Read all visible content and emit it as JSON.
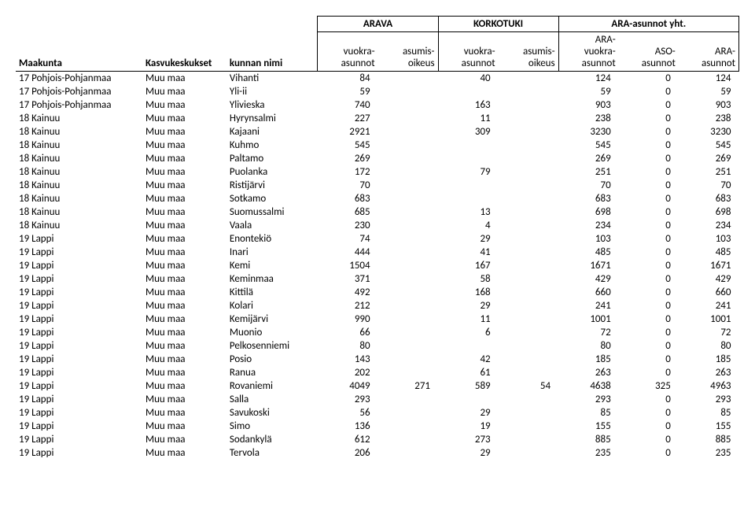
{
  "headers": {
    "group_arava": "ARAVA",
    "group_korkotuki": "KORKOTUKI",
    "group_ara_yht": "ARA-asunnot yht.",
    "maakunta": "Maakunta",
    "kasvukeskukset": "Kasvukeskukset",
    "kunnan_nimi": "kunnan nimi",
    "vuokra_asunnot": "vuokra-\nasunnot",
    "asumis_oikeus": "asumis-\noikeus",
    "ara_vuokra_asunnot": "ARA-\nvuokra-\nasunnot",
    "aso_asunnot": "ASO-\nasunnot",
    "ara_asunnot": "ARA-\nasunnot"
  },
  "rows": [
    {
      "maakunta": "17 Pohjois-Pohjanmaa",
      "kasvu": "Muu maa",
      "kunta": "Vihanti",
      "c1": 84,
      "c2": "",
      "c3": 40,
      "c4": "",
      "c5": 124,
      "c6": 0,
      "c7": 124
    },
    {
      "maakunta": "17 Pohjois-Pohjanmaa",
      "kasvu": "Muu maa",
      "kunta": "Yli-ii",
      "c1": 59,
      "c2": "",
      "c3": "",
      "c4": "",
      "c5": 59,
      "c6": 0,
      "c7": 59
    },
    {
      "maakunta": "17 Pohjois-Pohjanmaa",
      "kasvu": "Muu maa",
      "kunta": "Ylivieska",
      "c1": 740,
      "c2": "",
      "c3": 163,
      "c4": "",
      "c5": 903,
      "c6": 0,
      "c7": 903
    },
    {
      "maakunta": "18 Kainuu",
      "kasvu": "Muu maa",
      "kunta": "Hyrynsalmi",
      "c1": 227,
      "c2": "",
      "c3": 11,
      "c4": "",
      "c5": 238,
      "c6": 0,
      "c7": 238
    },
    {
      "maakunta": "18 Kainuu",
      "kasvu": "Muu maa",
      "kunta": "Kajaani",
      "c1": 2921,
      "c2": "",
      "c3": 309,
      "c4": "",
      "c5": 3230,
      "c6": 0,
      "c7": 3230
    },
    {
      "maakunta": "18 Kainuu",
      "kasvu": "Muu maa",
      "kunta": "Kuhmo",
      "c1": 545,
      "c2": "",
      "c3": "",
      "c4": "",
      "c5": 545,
      "c6": 0,
      "c7": 545
    },
    {
      "maakunta": "18 Kainuu",
      "kasvu": "Muu maa",
      "kunta": "Paltamo",
      "c1": 269,
      "c2": "",
      "c3": "",
      "c4": "",
      "c5": 269,
      "c6": 0,
      "c7": 269
    },
    {
      "maakunta": "18 Kainuu",
      "kasvu": "Muu maa",
      "kunta": "Puolanka",
      "c1": 172,
      "c2": "",
      "c3": 79,
      "c4": "",
      "c5": 251,
      "c6": 0,
      "c7": 251
    },
    {
      "maakunta": "18 Kainuu",
      "kasvu": "Muu maa",
      "kunta": "Ristijärvi",
      "c1": 70,
      "c2": "",
      "c3": "",
      "c4": "",
      "c5": 70,
      "c6": 0,
      "c7": 70
    },
    {
      "maakunta": "18 Kainuu",
      "kasvu": "Muu maa",
      "kunta": "Sotkamo",
      "c1": 683,
      "c2": "",
      "c3": "",
      "c4": "",
      "c5": 683,
      "c6": 0,
      "c7": 683
    },
    {
      "maakunta": "18 Kainuu",
      "kasvu": "Muu maa",
      "kunta": "Suomussalmi",
      "c1": 685,
      "c2": "",
      "c3": 13,
      "c4": "",
      "c5": 698,
      "c6": 0,
      "c7": 698
    },
    {
      "maakunta": "18 Kainuu",
      "kasvu": "Muu maa",
      "kunta": "Vaala",
      "c1": 230,
      "c2": "",
      "c3": 4,
      "c4": "",
      "c5": 234,
      "c6": 0,
      "c7": 234
    },
    {
      "maakunta": "19 Lappi",
      "kasvu": "Muu maa",
      "kunta": "Enontekiö",
      "c1": 74,
      "c2": "",
      "c3": 29,
      "c4": "",
      "c5": 103,
      "c6": 0,
      "c7": 103
    },
    {
      "maakunta": "19 Lappi",
      "kasvu": "Muu maa",
      "kunta": "Inari",
      "c1": 444,
      "c2": "",
      "c3": 41,
      "c4": "",
      "c5": 485,
      "c6": 0,
      "c7": 485
    },
    {
      "maakunta": "19 Lappi",
      "kasvu": "Muu maa",
      "kunta": "Kemi",
      "c1": 1504,
      "c2": "",
      "c3": 167,
      "c4": "",
      "c5": 1671,
      "c6": 0,
      "c7": 1671
    },
    {
      "maakunta": "19 Lappi",
      "kasvu": "Muu maa",
      "kunta": "Keminmaa",
      "c1": 371,
      "c2": "",
      "c3": 58,
      "c4": "",
      "c5": 429,
      "c6": 0,
      "c7": 429
    },
    {
      "maakunta": "19 Lappi",
      "kasvu": "Muu maa",
      "kunta": "Kittilä",
      "c1": 492,
      "c2": "",
      "c3": 168,
      "c4": "",
      "c5": 660,
      "c6": 0,
      "c7": 660
    },
    {
      "maakunta": "19 Lappi",
      "kasvu": "Muu maa",
      "kunta": "Kolari",
      "c1": 212,
      "c2": "",
      "c3": 29,
      "c4": "",
      "c5": 241,
      "c6": 0,
      "c7": 241
    },
    {
      "maakunta": "19 Lappi",
      "kasvu": "Muu maa",
      "kunta": "Kemijärvi",
      "c1": 990,
      "c2": "",
      "c3": 11,
      "c4": "",
      "c5": 1001,
      "c6": 0,
      "c7": 1001
    },
    {
      "maakunta": "19 Lappi",
      "kasvu": "Muu maa",
      "kunta": "Muonio",
      "c1": 66,
      "c2": "",
      "c3": 6,
      "c4": "",
      "c5": 72,
      "c6": 0,
      "c7": 72
    },
    {
      "maakunta": "19 Lappi",
      "kasvu": "Muu maa",
      "kunta": "Pelkosenniemi",
      "c1": 80,
      "c2": "",
      "c3": "",
      "c4": "",
      "c5": 80,
      "c6": 0,
      "c7": 80
    },
    {
      "maakunta": "19 Lappi",
      "kasvu": "Muu maa",
      "kunta": "Posio",
      "c1": 143,
      "c2": "",
      "c3": 42,
      "c4": "",
      "c5": 185,
      "c6": 0,
      "c7": 185
    },
    {
      "maakunta": "19 Lappi",
      "kasvu": "Muu maa",
      "kunta": "Ranua",
      "c1": 202,
      "c2": "",
      "c3": 61,
      "c4": "",
      "c5": 263,
      "c6": 0,
      "c7": 263
    },
    {
      "maakunta": "19 Lappi",
      "kasvu": "Muu maa",
      "kunta": "Rovaniemi",
      "c1": 4049,
      "c2": 271,
      "c3": 589,
      "c4": 54,
      "c5": 4638,
      "c6": 325,
      "c7": 4963
    },
    {
      "maakunta": "19 Lappi",
      "kasvu": "Muu maa",
      "kunta": "Salla",
      "c1": 293,
      "c2": "",
      "c3": "",
      "c4": "",
      "c5": 293,
      "c6": 0,
      "c7": 293
    },
    {
      "maakunta": "19 Lappi",
      "kasvu": "Muu maa",
      "kunta": "Savukoski",
      "c1": 56,
      "c2": "",
      "c3": 29,
      "c4": "",
      "c5": 85,
      "c6": 0,
      "c7": 85
    },
    {
      "maakunta": "19 Lappi",
      "kasvu": "Muu maa",
      "kunta": "Simo",
      "c1": 136,
      "c2": "",
      "c3": 19,
      "c4": "",
      "c5": 155,
      "c6": 0,
      "c7": 155
    },
    {
      "maakunta": "19 Lappi",
      "kasvu": "Muu maa",
      "kunta": "Sodankylä",
      "c1": 612,
      "c2": "",
      "c3": 273,
      "c4": "",
      "c5": 885,
      "c6": 0,
      "c7": 885
    },
    {
      "maakunta": "19 Lappi",
      "kasvu": "Muu maa",
      "kunta": "Tervola",
      "c1": 206,
      "c2": "",
      "c3": 29,
      "c4": "",
      "c5": 235,
      "c6": 0,
      "c7": 235
    }
  ]
}
